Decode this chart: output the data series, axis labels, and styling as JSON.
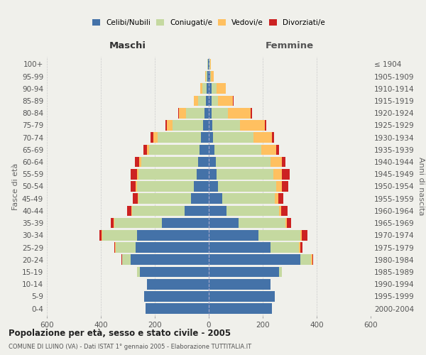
{
  "age_groups": [
    "0-4",
    "5-9",
    "10-14",
    "15-19",
    "20-24",
    "25-29",
    "30-34",
    "35-39",
    "40-44",
    "45-49",
    "50-54",
    "55-59",
    "60-64",
    "65-69",
    "70-74",
    "75-79",
    "80-84",
    "85-89",
    "90-94",
    "95-99",
    "100+"
  ],
  "birth_years": [
    "2000-2004",
    "1995-1999",
    "1990-1994",
    "1985-1989",
    "1980-1984",
    "1975-1979",
    "1970-1974",
    "1965-1969",
    "1960-1964",
    "1955-1959",
    "1950-1954",
    "1945-1949",
    "1940-1944",
    "1935-1939",
    "1930-1934",
    "1925-1929",
    "1920-1924",
    "1915-1919",
    "1910-1914",
    "1905-1909",
    "≤ 1904"
  ],
  "male": {
    "celibe": [
      235,
      240,
      230,
      255,
      290,
      270,
      265,
      175,
      90,
      65,
      55,
      45,
      40,
      35,
      30,
      20,
      15,
      10,
      8,
      4,
      2
    ],
    "coniugato": [
      0,
      0,
      0,
      10,
      30,
      75,
      130,
      175,
      195,
      195,
      210,
      215,
      210,
      185,
      160,
      115,
      70,
      30,
      15,
      6,
      2
    ],
    "vedovo": [
      0,
      0,
      0,
      0,
      2,
      2,
      2,
      2,
      2,
      3,
      5,
      5,
      8,
      10,
      15,
      20,
      25,
      15,
      8,
      3,
      1
    ],
    "divorziato": [
      0,
      0,
      0,
      0,
      2,
      3,
      8,
      10,
      15,
      18,
      20,
      25,
      15,
      12,
      10,
      5,
      2,
      1,
      1,
      0,
      0
    ]
  },
  "female": {
    "nubile": [
      235,
      245,
      230,
      260,
      340,
      230,
      185,
      110,
      65,
      50,
      35,
      30,
      25,
      20,
      15,
      12,
      10,
      10,
      10,
      4,
      2
    ],
    "coniugata": [
      0,
      0,
      0,
      10,
      40,
      105,
      155,
      175,
      195,
      195,
      215,
      210,
      205,
      175,
      150,
      105,
      60,
      25,
      18,
      5,
      2
    ],
    "vedova": [
      0,
      0,
      0,
      0,
      3,
      5,
      5,
      5,
      8,
      12,
      20,
      30,
      40,
      55,
      70,
      90,
      85,
      55,
      35,
      10,
      3
    ],
    "divorziata": [
      0,
      0,
      0,
      0,
      3,
      8,
      20,
      15,
      25,
      20,
      25,
      30,
      15,
      10,
      8,
      5,
      5,
      2,
      1,
      0,
      0
    ]
  },
  "colors": {
    "celibe": "#4472a8",
    "coniugato": "#c5d9a0",
    "vedovo": "#ffc060",
    "divorziato": "#cc2222"
  },
  "title": "Popolazione per età, sesso e stato civile - 2005",
  "subtitle": "COMUNE DI LUINO (VA) - Dati ISTAT 1° gennaio 2005 - Elaborazione TUTTITALIA.IT",
  "xlabel_left": "Maschi",
  "xlabel_right": "Femmine",
  "ylabel_left": "Fasce di età",
  "ylabel_right": "Anni di nascita",
  "xlim": 600,
  "bg_color": "#f0f0eb",
  "grid_color": "#cccccc",
  "bar_height": 0.85
}
